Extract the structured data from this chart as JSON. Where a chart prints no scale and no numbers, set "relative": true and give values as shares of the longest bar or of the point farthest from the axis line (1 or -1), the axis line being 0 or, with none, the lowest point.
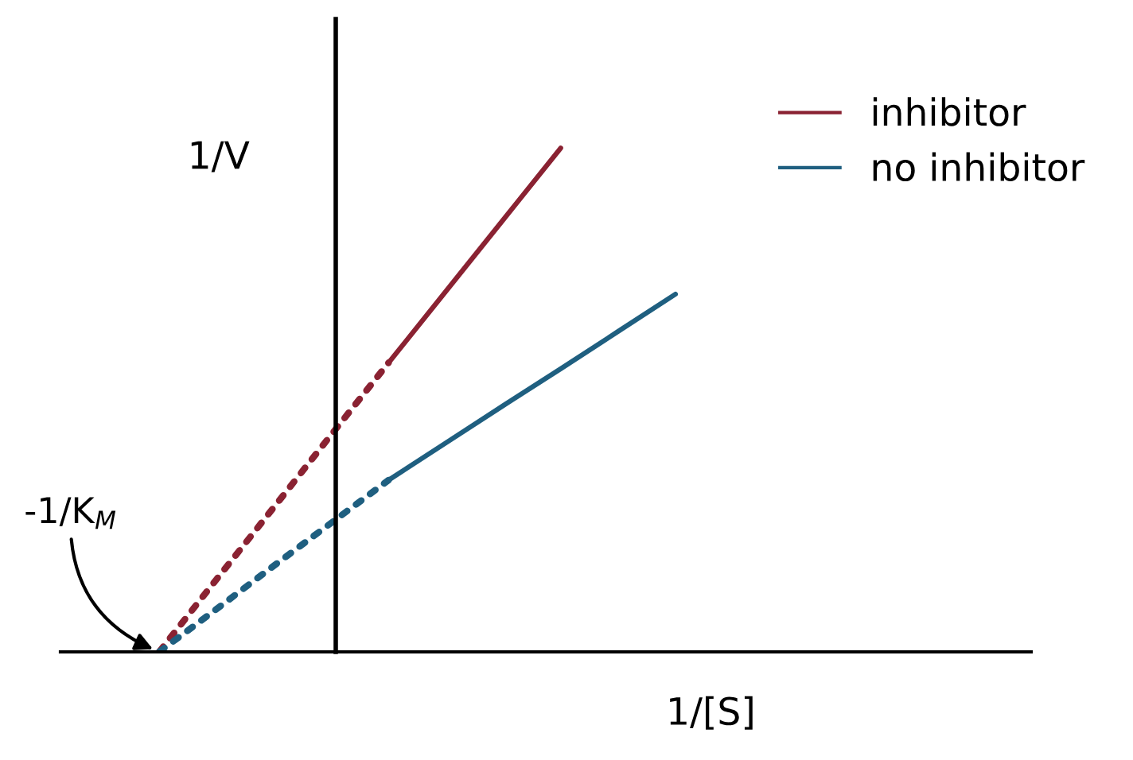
{
  "chart_data": {
    "type": "line",
    "relative": true,
    "xlabel": "1/[S]",
    "ylabel": "1/V",
    "categories": [
      null,
      null,
      null,
      null,
      null,
      null,
      null,
      null,
      null,
      null
    ],
    "series": [
      {
        "values": [
          0,
          0.144,
          0.287,
          0.431,
          0.574,
          null,
          null,
          null,
          null,
          null
        ],
        "color": "#8a2232",
        "line_style": "dotted"
      },
      {
        "name": "inhibitor",
        "values": [
          null,
          null,
          null,
          null,
          0.574,
          0.716,
          0.858,
          1,
          null,
          null
        ],
        "color": "#8a2232",
        "line_style": "solid"
      },
      {
        "values": [
          0,
          0.085,
          0.171,
          0.256,
          0.341,
          null,
          null,
          null,
          null,
          null
        ],
        "color": "#1f5f80",
        "line_style": "dotted"
      },
      {
        "name": "no inhibitor",
        "values": [
          null,
          null,
          null,
          null,
          0.341,
          0.415,
          0.489,
          0.562,
          0.636,
          0.71
        ],
        "color": "#1f5f80",
        "line_style": "solid"
      }
    ],
    "annotations": [
      "-1/K$_{M}$"
    ],
    "legend": "top right",
    "marker": "none"
  }
}
